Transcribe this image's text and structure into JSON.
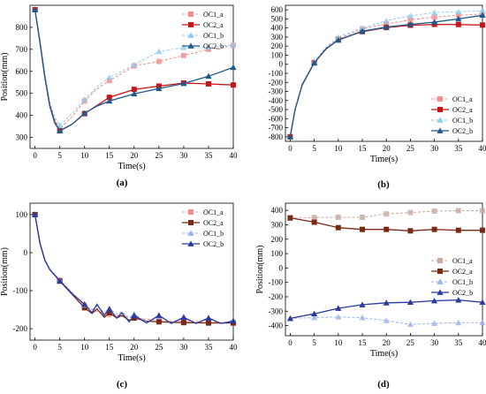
{
  "figure": {
    "caption_open": "(",
    "caption_close": ")"
  },
  "chart_data": [
    {
      "panel": "a",
      "type": "line",
      "xlabel": "Time(s)",
      "ylabel": "Position(mm)",
      "xlim": [
        -1,
        40
      ],
      "ylim": [
        250,
        900
      ],
      "xticks": [
        0,
        5,
        10,
        15,
        20,
        25,
        30,
        35,
        40
      ],
      "yticks": [
        300,
        400,
        500,
        600,
        700,
        800
      ],
      "grid": false,
      "legend": "top-right",
      "series": [
        {
          "name": "OC1_a",
          "color": "#f08c8c",
          "dashed": true,
          "marker": "square",
          "dim": true,
          "x": [
            0,
            1,
            2,
            3,
            4,
            5,
            7.5,
            10,
            12.5,
            15,
            17.5,
            20,
            25,
            30,
            35,
            40
          ],
          "y": [
            880,
            740,
            580,
            450,
            380,
            340,
            395,
            465,
            520,
            558,
            590,
            625,
            645,
            672,
            700,
            718
          ]
        },
        {
          "name": "OC2_a",
          "color": "#c81414",
          "dashed": false,
          "marker": "square",
          "dim": false,
          "x": [
            0,
            1,
            2,
            3,
            4,
            5,
            7.5,
            10,
            12.5,
            15,
            17.5,
            20,
            25,
            30,
            35,
            40
          ],
          "y": [
            880,
            730,
            570,
            440,
            365,
            330,
            360,
            408,
            445,
            482,
            500,
            518,
            533,
            547,
            543,
            538
          ]
        },
        {
          "name": "OC1_b",
          "color": "#8ccdf0",
          "dashed": true,
          "marker": "triangle",
          "dim": true,
          "x": [
            0,
            1,
            2,
            3,
            4,
            5,
            7.5,
            10,
            12.5,
            15,
            17.5,
            20,
            25,
            30,
            35,
            40
          ],
          "y": [
            880,
            745,
            590,
            460,
            390,
            355,
            410,
            472,
            530,
            572,
            600,
            630,
            690,
            708,
            710,
            720
          ]
        },
        {
          "name": "OC2_b",
          "color": "#1e5a8c",
          "dashed": false,
          "marker": "triangle",
          "dim": false,
          "x": [
            0,
            1,
            2,
            3,
            4,
            5,
            7.5,
            10,
            12.5,
            15,
            17.5,
            20,
            25,
            30,
            35,
            40
          ],
          "y": [
            880,
            735,
            575,
            445,
            370,
            330,
            360,
            410,
            442,
            465,
            482,
            498,
            522,
            545,
            578,
            618
          ]
        }
      ]
    },
    {
      "panel": "b",
      "type": "line",
      "xlabel": "Time(s)",
      "ylabel": "",
      "xlim": [
        -1,
        40
      ],
      "ylim": [
        -850,
        650
      ],
      "xticks": [
        0,
        5,
        10,
        15,
        20,
        25,
        30,
        35,
        40
      ],
      "yticks": [
        -800,
        -700,
        -600,
        -500,
        -400,
        -300,
        -200,
        -100,
        0,
        100,
        200,
        300,
        400,
        500,
        600
      ],
      "grid": false,
      "legend": "bottom-right",
      "series": [
        {
          "name": "OC1_a",
          "color": "#f08c8c",
          "dashed": true,
          "marker": "square",
          "dim": true,
          "x": [
            0,
            1,
            2.5,
            5,
            7.5,
            10,
            15,
            20,
            25,
            30,
            35,
            40
          ],
          "y": [
            -800,
            -500,
            -220,
            20,
            180,
            280,
            390,
            445,
            490,
            520,
            540,
            555
          ]
        },
        {
          "name": "OC2_a",
          "color": "#c81414",
          "dashed": false,
          "marker": "square",
          "dim": false,
          "x": [
            0,
            1,
            2.5,
            5,
            7.5,
            10,
            15,
            20,
            25,
            30,
            35,
            40
          ],
          "y": [
            -800,
            -500,
            -230,
            15,
            170,
            270,
            360,
            405,
            430,
            440,
            438,
            432
          ]
        },
        {
          "name": "OC1_b",
          "color": "#8ccdf0",
          "dashed": true,
          "marker": "triangle",
          "dim": true,
          "x": [
            0,
            1,
            2.5,
            5,
            7.5,
            10,
            15,
            20,
            25,
            30,
            35,
            40
          ],
          "y": [
            -800,
            -495,
            -215,
            30,
            190,
            300,
            400,
            480,
            535,
            570,
            580,
            590
          ]
        },
        {
          "name": "OC2_b",
          "color": "#1e5a8c",
          "dashed": false,
          "marker": "triangle",
          "dim": false,
          "x": [
            0,
            1,
            2.5,
            5,
            7.5,
            10,
            15,
            20,
            25,
            30,
            35,
            40
          ],
          "y": [
            -800,
            -500,
            -225,
            15,
            175,
            265,
            365,
            410,
            440,
            465,
            500,
            540
          ]
        }
      ]
    },
    {
      "panel": "c",
      "type": "line",
      "xlabel": "Time(s)",
      "ylabel": "Position(mm)",
      "xlim": [
        -1,
        40
      ],
      "ylim": [
        -230,
        130
      ],
      "xticks": [
        0,
        5,
        10,
        15,
        20,
        25,
        30,
        35,
        40
      ],
      "yticks": [
        -200,
        -100,
        0,
        100
      ],
      "grid": false,
      "legend": "top-right",
      "series": [
        {
          "name": "OC1_a",
          "color": "#f08c8c",
          "dashed": true,
          "marker": "square",
          "dim": true,
          "x": [
            0,
            1,
            2,
            3,
            5,
            7.5,
            10,
            12.5,
            15,
            17.5,
            20,
            25,
            30,
            35,
            40
          ],
          "y": [
            100,
            25,
            -20,
            -45,
            -72,
            -105,
            -140,
            -155,
            -162,
            -168,
            -172,
            -178,
            -180,
            -182,
            -185
          ]
        },
        {
          "name": "OC2_a",
          "color": "#7a2a14",
          "dashed": false,
          "marker": "square",
          "dim": false,
          "x": [
            0,
            1,
            2,
            3,
            5,
            7.5,
            10,
            11.5,
            12.5,
            14,
            15,
            16.5,
            17.5,
            19,
            20,
            22.5,
            25,
            30,
            35,
            40
          ],
          "y": [
            100,
            25,
            -20,
            -45,
            -75,
            -110,
            -145,
            -160,
            -148,
            -170,
            -158,
            -172,
            -165,
            -178,
            -172,
            -180,
            -182,
            -184,
            -185,
            -185
          ]
        },
        {
          "name": "OC1_b",
          "color": "#9ab0f0",
          "dashed": true,
          "marker": "triangle",
          "dim": true,
          "x": [
            0,
            1,
            2,
            3,
            5,
            7.5,
            10,
            11.5,
            12.5,
            14,
            15,
            16.5,
            17.5,
            19,
            20,
            22.5,
            25,
            27.5,
            30,
            32.5,
            35,
            37.5,
            40
          ],
          "y": [
            100,
            28,
            -18,
            -42,
            -72,
            -105,
            -138,
            -150,
            -140,
            -158,
            -148,
            -162,
            -155,
            -172,
            -162,
            -182,
            -168,
            -185,
            -170,
            -186,
            -172,
            -186,
            -178
          ]
        },
        {
          "name": "OC2_b",
          "color": "#2a3aa0",
          "dashed": false,
          "marker": "triangle",
          "dim": false,
          "x": [
            0,
            1,
            2,
            3,
            5,
            7.5,
            10,
            11.5,
            12.5,
            14,
            15,
            16.5,
            17.5,
            19,
            20,
            22.5,
            25,
            27.5,
            30,
            32.5,
            35,
            37.5,
            40
          ],
          "y": [
            100,
            25,
            -20,
            -45,
            -74,
            -108,
            -136,
            -158,
            -136,
            -165,
            -148,
            -172,
            -158,
            -182,
            -165,
            -185,
            -165,
            -186,
            -170,
            -186,
            -172,
            -186,
            -180
          ]
        }
      ]
    },
    {
      "panel": "d",
      "type": "line",
      "xlabel": "Time(s)",
      "ylabel": "Position(mm)",
      "xlim": [
        -1,
        40
      ],
      "ylim": [
        -470,
        450
      ],
      "xticks": [
        0,
        5,
        10,
        15,
        20,
        25,
        30,
        35,
        40
      ],
      "yticks": [
        -400,
        -300,
        -200,
        -100,
        0,
        100,
        200,
        300,
        400
      ],
      "grid": false,
      "legend": "middle-right",
      "series": [
        {
          "name": "OC1_a",
          "color": "#c8a8a0",
          "dashed": true,
          "marker": "square",
          "dim": true,
          "x": [
            0,
            5,
            10,
            15,
            20,
            25,
            30,
            35,
            40
          ],
          "y": [
            345,
            350,
            352,
            352,
            375,
            385,
            395,
            398,
            398
          ]
        },
        {
          "name": "OC2_a",
          "color": "#7a2a14",
          "dashed": false,
          "marker": "square",
          "dim": false,
          "x": [
            0,
            5,
            10,
            15,
            20,
            25,
            30,
            35,
            40
          ],
          "y": [
            348,
            318,
            280,
            268,
            268,
            258,
            268,
            262,
            262
          ]
        },
        {
          "name": "OC1_b",
          "color": "#9ab0f0",
          "dashed": true,
          "marker": "triangle",
          "dim": true,
          "x": [
            0,
            5,
            10,
            15,
            20,
            25,
            30,
            35,
            40
          ],
          "y": [
            -350,
            -345,
            -340,
            -345,
            -365,
            -392,
            -385,
            -380,
            -380
          ]
        },
        {
          "name": "OC2_b",
          "color": "#2a3aa0",
          "dashed": false,
          "marker": "triangle",
          "dim": false,
          "x": [
            0,
            5,
            10,
            15,
            20,
            25,
            30,
            35,
            40
          ],
          "y": [
            -350,
            -318,
            -280,
            -255,
            -242,
            -238,
            -228,
            -222,
            -238
          ]
        }
      ]
    }
  ]
}
